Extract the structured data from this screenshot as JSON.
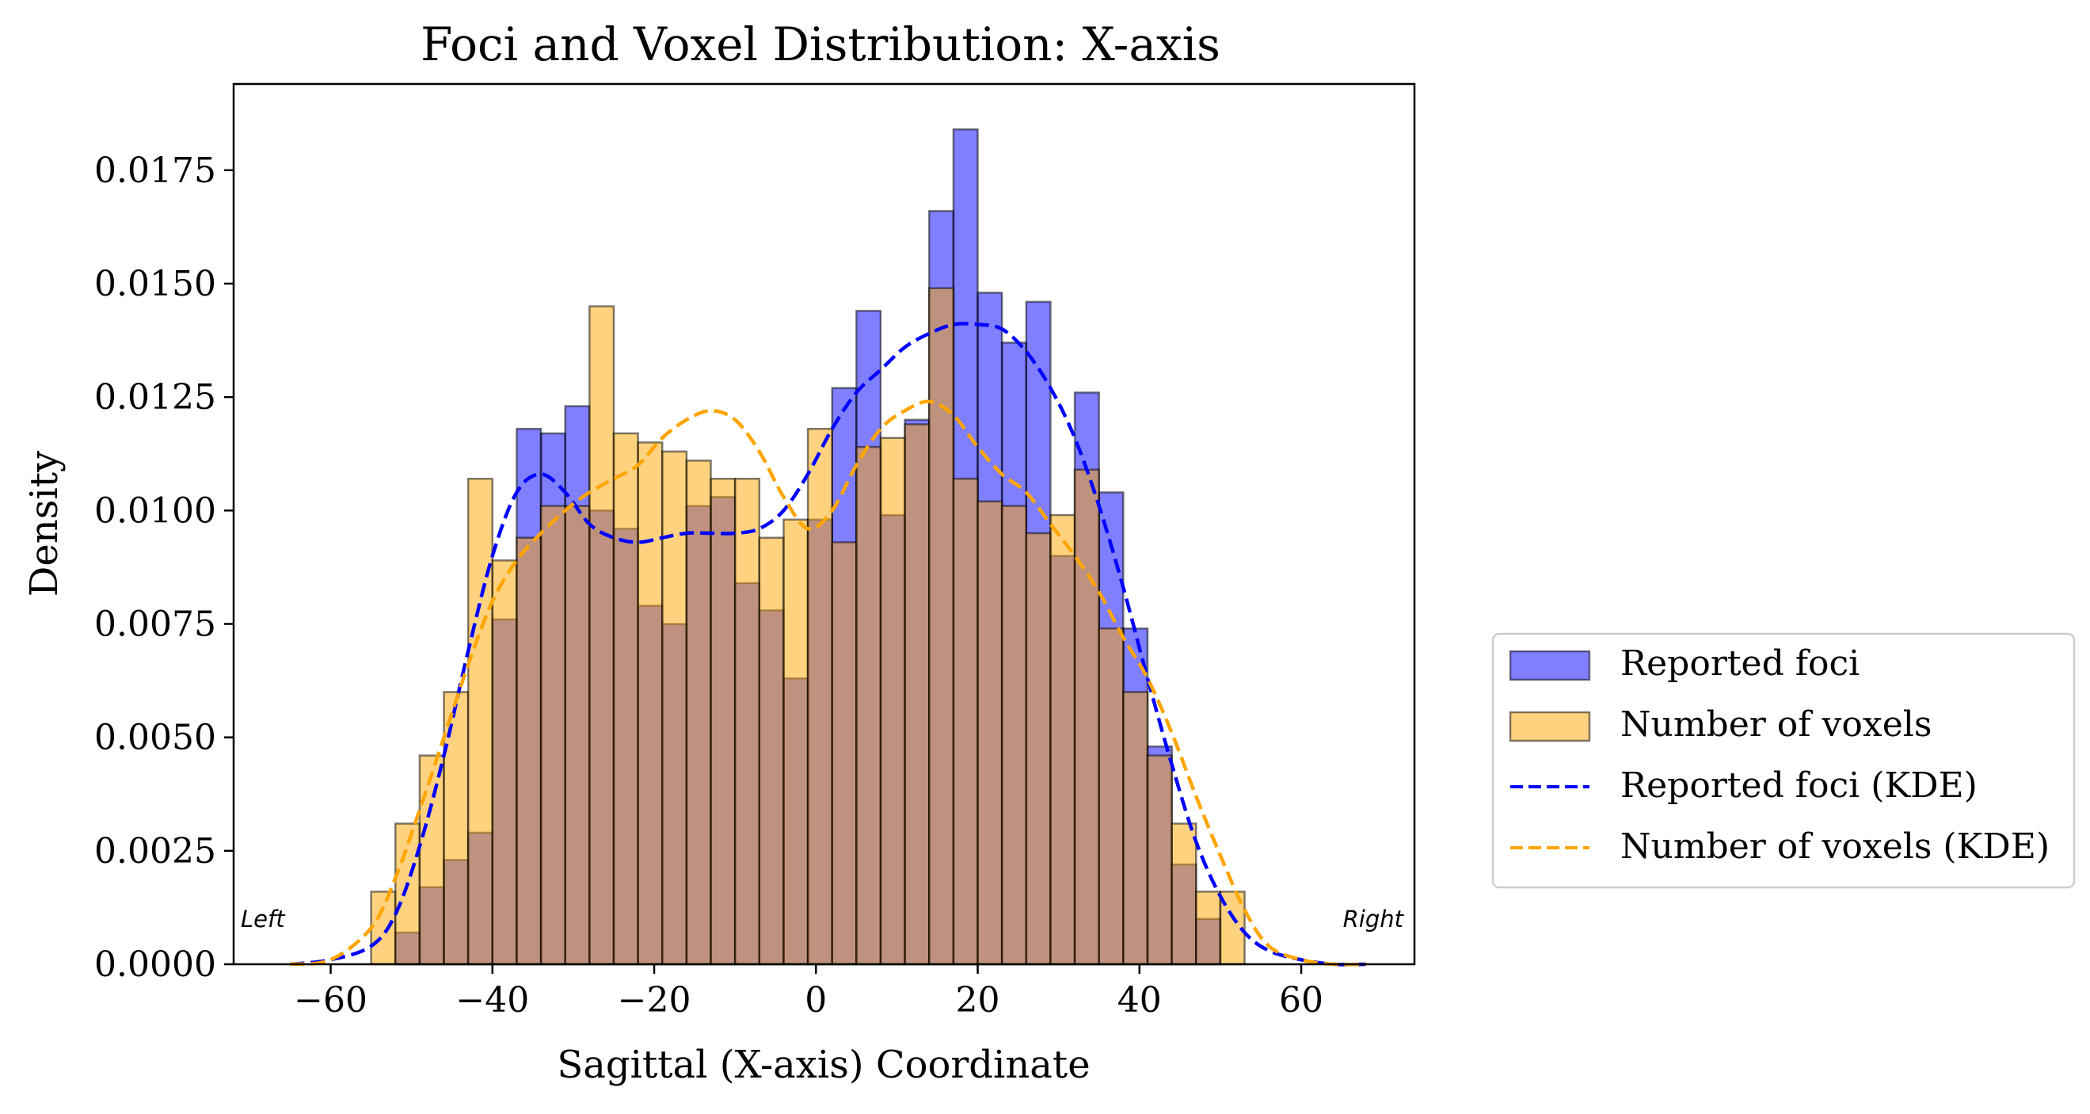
{
  "chart_data": {
    "type": "bar",
    "title": "Foci and Voxel Distribution: X-axis",
    "xlabel": "Sagittal (X-axis) Coordinate",
    "ylabel": "Density",
    "xlim": [
      -72,
      74
    ],
    "ylim": [
      0,
      0.0194
    ],
    "xticks": [
      -60,
      -40,
      -20,
      0,
      20,
      40,
      60
    ],
    "xtick_labels": [
      "−60",
      "−40",
      "−20",
      "0",
      "20",
      "40",
      "60"
    ],
    "yticks": [
      0,
      0.0025,
      0.005,
      0.0075,
      0.01,
      0.0125,
      0.015,
      0.0175
    ],
    "ytick_labels": [
      "0.0000",
      "0.0025",
      "0.0050",
      "0.0075",
      "0.0100",
      "0.0125",
      "0.0150",
      "0.0175"
    ],
    "bin_edges": [
      -55,
      -52,
      -49,
      -46,
      -43,
      -40,
      -37,
      -34,
      -31,
      -28,
      -25,
      -22,
      -19,
      -16,
      -13,
      -10,
      -7,
      -4,
      -1,
      2,
      5,
      8,
      11,
      14,
      17,
      20,
      23,
      26,
      29,
      32,
      35,
      38,
      41,
      44,
      47,
      50,
      53,
      56
    ],
    "series": [
      {
        "name": "Reported foci",
        "kind": "histogram",
        "color": "#0000ff",
        "alpha": 0.5,
        "values": [
          0.0,
          0.0007,
          0.0017,
          0.0023,
          0.0029,
          0.0076,
          0.0118,
          0.0117,
          0.0123,
          0.01,
          0.0096,
          0.0079,
          0.0075,
          0.0101,
          0.0103,
          0.0084,
          0.0078,
          0.0063,
          0.0098,
          0.0127,
          0.0144,
          0.0099,
          0.012,
          0.0166,
          0.0184,
          0.0148,
          0.0137,
          0.0146,
          0.009,
          0.0126,
          0.0104,
          0.0074,
          0.0048,
          0.0022,
          0.001,
          0.0,
          0.0
        ]
      },
      {
        "name": "Number of voxels",
        "kind": "histogram",
        "color": "#ffa500",
        "alpha": 0.5,
        "values": [
          0.0016,
          0.0031,
          0.0046,
          0.006,
          0.0107,
          0.0089,
          0.0094,
          0.0101,
          0.0101,
          0.0145,
          0.0117,
          0.0115,
          0.0113,
          0.0111,
          0.0107,
          0.0107,
          0.0094,
          0.0098,
          0.0118,
          0.0093,
          0.0114,
          0.0116,
          0.0119,
          0.0149,
          0.0107,
          0.0102,
          0.0101,
          0.0095,
          0.0099,
          0.0109,
          0.0074,
          0.006,
          0.0046,
          0.0031,
          0.0016,
          0.0016,
          0.0
        ]
      },
      {
        "name": "Reported foci (KDE)",
        "kind": "kde",
        "color": "#0000ff",
        "x": [
          -65,
          -60,
          -55,
          -52,
          -49,
          -46,
          -43,
          -40,
          -37,
          -34,
          -31,
          -28,
          -25,
          -22,
          -19,
          -16,
          -13,
          -10,
          -7,
          -4,
          -1,
          2,
          5,
          8,
          11,
          14,
          17,
          20,
          23,
          26,
          29,
          32,
          35,
          38,
          41,
          44,
          47,
          50,
          53,
          56,
          60,
          64,
          68
        ],
        "y": [
          0.0,
          0.0001,
          0.0004,
          0.0011,
          0.0026,
          0.0046,
          0.0069,
          0.009,
          0.0104,
          0.0108,
          0.0104,
          0.0097,
          0.0094,
          0.0093,
          0.0094,
          0.0095,
          0.0095,
          0.0095,
          0.0096,
          0.01,
          0.0108,
          0.0118,
          0.0126,
          0.0131,
          0.0136,
          0.0139,
          0.0141,
          0.0141,
          0.014,
          0.0135,
          0.0127,
          0.0116,
          0.0101,
          0.0083,
          0.0063,
          0.0044,
          0.0027,
          0.0015,
          0.0007,
          0.0003,
          0.0001,
          0.0,
          0.0
        ]
      },
      {
        "name": "Number of voxels (KDE)",
        "kind": "kde",
        "color": "#ffa500",
        "x": [
          -65,
          -60,
          -55,
          -52,
          -49,
          -46,
          -43,
          -40,
          -37,
          -34,
          -31,
          -28,
          -25,
          -22,
          -19,
          -16,
          -13,
          -10,
          -7,
          -4,
          -1,
          2,
          5,
          8,
          11,
          14,
          17,
          20,
          23,
          26,
          29,
          32,
          35,
          38,
          41,
          44,
          47,
          50,
          53,
          56,
          60,
          64,
          68
        ],
        "y": [
          0.0,
          0.0001,
          0.0008,
          0.0019,
          0.0034,
          0.005,
          0.0066,
          0.008,
          0.0089,
          0.0095,
          0.01,
          0.0104,
          0.0107,
          0.011,
          0.0116,
          0.012,
          0.0122,
          0.012,
          0.0113,
          0.0103,
          0.0096,
          0.01,
          0.011,
          0.0118,
          0.0122,
          0.0124,
          0.0121,
          0.0114,
          0.0108,
          0.0104,
          0.0097,
          0.009,
          0.0082,
          0.0072,
          0.0063,
          0.0051,
          0.0037,
          0.0024,
          0.0012,
          0.0004,
          0.0001,
          0.0,
          0.0
        ]
      }
    ],
    "annotations": [
      {
        "text": "Left",
        "x": -70.5,
        "y": 0.0006,
        "anchor": "start"
      },
      {
        "text": "Right",
        "x": 72.5,
        "y": 0.0006,
        "anchor": "end"
      }
    ],
    "legend": {
      "placement": "outside-right-lower",
      "entries": [
        {
          "label": "Reported foci",
          "type": "patch",
          "color": "#0000ff"
        },
        {
          "label": "Number of voxels",
          "type": "patch",
          "color": "#ffa500"
        },
        {
          "label": "Reported foci (KDE)",
          "type": "dashed-line",
          "color": "#0000ff"
        },
        {
          "label": "Number of voxels (KDE)",
          "type": "dashed-line",
          "color": "#ffa500"
        }
      ]
    },
    "grid": false
  }
}
